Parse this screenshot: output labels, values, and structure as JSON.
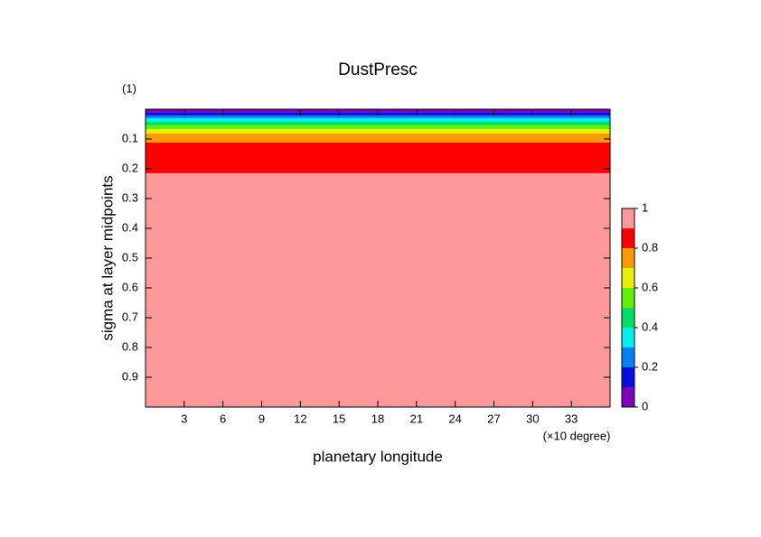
{
  "chart_data": {
    "type": "contour",
    "title": "DustPresc",
    "z_unit": "(1)",
    "xlabel": "planetary longitude",
    "xunit": "(×10 degree)",
    "ylabel": "sigma at layer midpoints",
    "xlim": [
      0,
      36
    ],
    "xticks": [
      3,
      6,
      9,
      12,
      15,
      18,
      21,
      24,
      27,
      30,
      33
    ],
    "ylim": [
      0,
      1
    ],
    "y_inverted": true,
    "yticks": [
      0.1,
      0.2,
      0.3,
      0.4,
      0.5,
      0.6,
      0.7,
      0.8,
      0.9
    ],
    "sigma_bounds": [
      0,
      0.012,
      0.021,
      0.03,
      0.042,
      0.055,
      0.067,
      0.082,
      0.112,
      0.215,
      1
    ],
    "values": [
      0.05,
      0.15,
      0.25,
      0.35,
      0.45,
      0.55,
      0.65,
      0.75,
      0.85,
      0.95
    ],
    "levels": [
      0,
      0.1,
      0.2,
      0.3,
      0.4,
      0.5,
      0.6,
      0.7,
      0.8,
      0.9,
      1
    ],
    "colors": [
      "#8000c0",
      "#0010e0",
      "#0080ff",
      "#00f0f0",
      "#00e060",
      "#60f000",
      "#e8f000",
      "#ff9900",
      "#ff0000",
      "#ff9999"
    ],
    "colorbar_ticks": [
      0,
      0.2,
      0.4,
      0.6,
      0.8,
      1
    ]
  }
}
